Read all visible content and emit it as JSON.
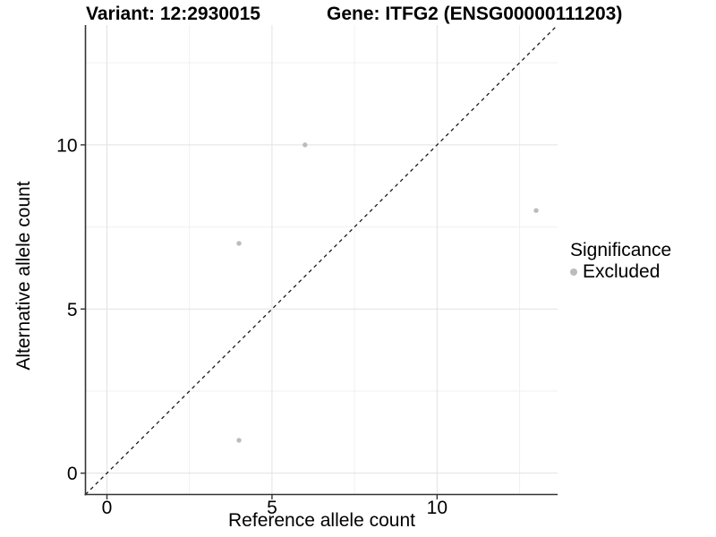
{
  "titles": {
    "variant": "Variant: 12:2930015",
    "gene": "Gene: ITFG2 (ENSG00000111203)"
  },
  "chart_data": {
    "type": "scatter",
    "xlabel": "Reference allele count",
    "ylabel": "Alternative allele count",
    "xlim": [
      -0.65,
      13.65
    ],
    "ylim": [
      -0.65,
      13.65
    ],
    "x_major_ticks": [
      0,
      5,
      10
    ],
    "y_major_ticks": [
      0,
      5,
      10
    ],
    "x_minor_gridlines": [
      2.5,
      7.5,
      12.5
    ],
    "y_minor_gridlines": [
      2.5,
      7.5,
      12.5
    ],
    "grid": "major and minor gridlines, white panel background",
    "identity_line": {
      "type": "y=x",
      "style": "dashed",
      "color": "#1a1a1a"
    },
    "series": [
      {
        "name": "Excluded",
        "color": "#bcbcbc",
        "points": [
          {
            "x": 4,
            "y": 1
          },
          {
            "x": 4,
            "y": 7
          },
          {
            "x": 6,
            "y": 10
          },
          {
            "x": 13,
            "y": 8
          }
        ]
      }
    ],
    "legend": {
      "title": "Significance",
      "position": "right",
      "items": [
        {
          "label": "Excluded",
          "color": "#bcbcbc"
        }
      ]
    },
    "colors": {
      "axis_line": "#333333",
      "major_grid": "#e2e2e2",
      "minor_grid": "#f0f0f0",
      "tick_text": "#000000",
      "point": "#bcbcbc"
    }
  }
}
